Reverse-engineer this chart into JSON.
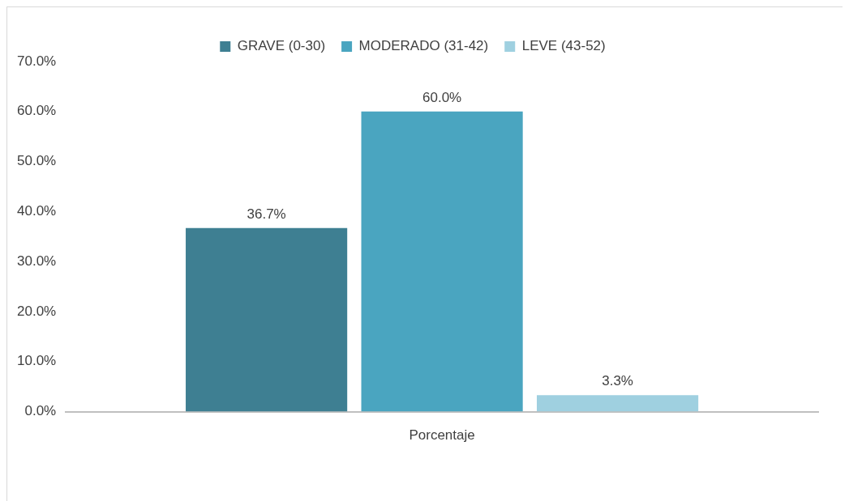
{
  "chart_data": {
    "type": "bar",
    "categories": [
      "Porcentaje"
    ],
    "series": [
      {
        "name": "GRAVE (0-30)",
        "color": "#3e7f92",
        "values": [
          36.7
        ],
        "value_labels": [
          "36.7%"
        ]
      },
      {
        "name": "MODERADO (31-42)",
        "color": "#4aa5c0",
        "values": [
          60.0
        ],
        "value_labels": [
          "60.0%"
        ]
      },
      {
        "name": "LEVE (43-52)",
        "color": "#9fd0e0",
        "values": [
          3.3
        ],
        "value_labels": [
          "3.3%"
        ]
      }
    ],
    "ylim": [
      0,
      70
    ],
    "yticks": [
      {
        "value": 0,
        "label": "0.0%"
      },
      {
        "value": 10,
        "label": "10.0%"
      },
      {
        "value": 20,
        "label": "20.0%"
      },
      {
        "value": 30,
        "label": "30.0%"
      },
      {
        "value": 40,
        "label": "40.0%"
      },
      {
        "value": 50,
        "label": "50.0%"
      },
      {
        "value": 60,
        "label": "60.0%"
      },
      {
        "value": 70,
        "label": "70.0%"
      }
    ],
    "grid": false,
    "legend": "top"
  }
}
